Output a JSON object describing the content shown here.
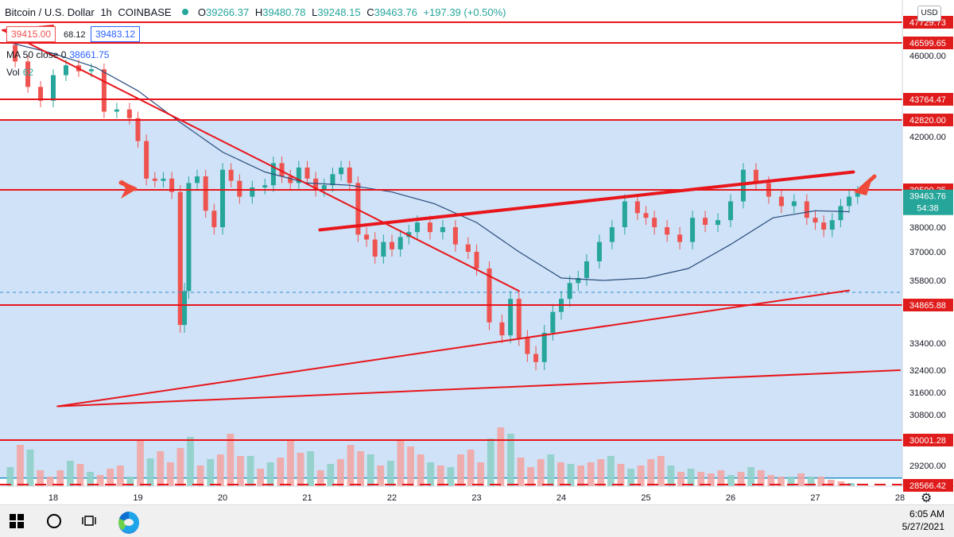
{
  "header": {
    "symbol": "Bitcoin / U.S. Dollar",
    "interval": "1h",
    "exchange": "COINBASE",
    "open_label": "O",
    "open": "39266.37",
    "high_label": "H",
    "high": "39480.78",
    "low_label": "L",
    "low": "39248.15",
    "close_label": "C",
    "close": "39463.76",
    "change": "+197.39 (+0.50%)",
    "bid": "39415.00",
    "spread": "68.12",
    "ask": "39483.12",
    "ma_label": "MA 50 close 0",
    "ma_value": "38661.75",
    "vol_label": "Vol",
    "vol_value": "62",
    "currency": "USD"
  },
  "colors": {
    "zone": "#cfe2f7",
    "up": "#26a69a",
    "down": "#ef5350",
    "trendline": "#e8151b",
    "ma": "#2b4c7e",
    "axis_tag": "#e01b1b"
  },
  "chart_data": {
    "type": "candlestick",
    "x_ticks": [
      "18",
      "19",
      "20",
      "21",
      "22",
      "23",
      "24",
      "25",
      "26",
      "27",
      "28"
    ],
    "y_ticks": [
      "46000.00",
      "42000.00",
      "38000.00",
      "37000.00",
      "35800.00",
      "33400.00",
      "32400.00",
      "31600.00",
      "30800.00",
      "29200.00"
    ],
    "level_labels": [
      "47729.73",
      "46599.65",
      "43764.47",
      "42820.00",
      "39590.25",
      "34865.88",
      "30001.28",
      "28566.42"
    ],
    "last_price": "39463.76",
    "countdown": "54:38",
    "zone_range": [
      28800,
      42820
    ],
    "horizontal_levels": [
      47729.73,
      46599.65,
      43764.47,
      42820.0,
      39590.25,
      34865.88,
      30001.28
    ],
    "dashed_level": 35800,
    "trendlines": [
      {
        "from": [
          "17.4",
          47300
        ],
        "to": [
          "23.5",
          35400
        ]
      },
      {
        "from": [
          "18.05",
          31100
        ],
        "to": [
          "27.4",
          35420
        ]
      },
      {
        "from": [
          "21.15",
          37890
        ],
        "to": [
          "27.45",
          40400
        ]
      },
      {
        "from": [
          "17.4",
          47300
        ],
        "to": [
          "18.0",
          47550
        ]
      },
      {
        "from": [
          "18.05",
          31100
        ],
        "to": [
          "28.0",
          32400
        ]
      }
    ],
    "series": [
      {
        "name": "close",
        "x": [
          17.55,
          17.7,
          17.85,
          18.0,
          18.15,
          18.3,
          18.45,
          18.6,
          18.75,
          18.9,
          19.0,
          19.1,
          19.2,
          19.3,
          19.4,
          19.5,
          19.55,
          19.6,
          19.7,
          19.8,
          19.9,
          20.0,
          20.1,
          20.2,
          20.35,
          20.5,
          20.6,
          20.7,
          20.8,
          20.9,
          21.0,
          21.1,
          21.2,
          21.3,
          21.4,
          21.5,
          21.6,
          21.7,
          21.8,
          21.9,
          22.0,
          22.1,
          22.2,
          22.3,
          22.45,
          22.6,
          22.75,
          22.9,
          23.0,
          23.15,
          23.3,
          23.4,
          23.5,
          23.6,
          23.7,
          23.8,
          23.9,
          24.0,
          24.1,
          24.2,
          24.3,
          24.45,
          24.6,
          24.75,
          24.9,
          25.0,
          25.1,
          25.25,
          25.4,
          25.55,
          25.7,
          25.85,
          26.0,
          26.15,
          26.3,
          26.45,
          26.6,
          26.75,
          26.9,
          27.0,
          27.1,
          27.2,
          27.3,
          27.4,
          27.5
        ],
        "values": [
          45700,
          44400,
          43700,
          45000,
          45500,
          45200,
          45300,
          43200,
          43300,
          42900,
          41800,
          40100,
          40000,
          40100,
          39500,
          34100,
          35400,
          39900,
          40200,
          38700,
          38000,
          40500,
          40000,
          39300,
          39700,
          39800,
          40800,
          40200,
          39900,
          40600,
          40100,
          39600,
          39800,
          40300,
          40600,
          39900,
          37700,
          37500,
          36800,
          37400,
          37100,
          37600,
          37800,
          38200,
          37800,
          38000,
          37300,
          37000,
          36300,
          34200,
          33700,
          35100,
          33600,
          33000,
          32700,
          33800,
          34600,
          35100,
          35700,
          35900,
          36600,
          37400,
          38000,
          39100,
          38600,
          38400,
          38000,
          37700,
          37400,
          38400,
          38100,
          38300,
          39100,
          40500,
          39900,
          39300,
          38900,
          39100,
          38400,
          38200,
          37900,
          38300,
          38900,
          39300,
          39460
        ]
      },
      {
        "name": "MA 50 close 0",
        "x": [
          17.5,
          18.0,
          18.5,
          19.0,
          19.5,
          20.0,
          20.5,
          21.0,
          21.5,
          22.0,
          22.5,
          23.0,
          23.5,
          24.0,
          24.5,
          25.0,
          25.5,
          26.0,
          26.5,
          27.0,
          27.4
        ],
        "values": [
          46600,
          46100,
          45400,
          44200,
          42700,
          41300,
          40400,
          39900,
          39800,
          39500,
          39000,
          38200,
          37000,
          35900,
          35800,
          35900,
          36300,
          37300,
          38400,
          38700,
          38660
        ]
      }
    ],
    "volume": [
      24,
      52,
      46,
      20,
      12,
      20,
      32,
      28,
      18,
      14,
      22,
      26,
      12,
      58,
      35,
      44,
      30,
      48,
      62,
      26,
      34,
      40,
      66,
      38,
      38,
      22,
      30,
      36,
      58,
      42,
      44,
      20,
      28,
      34,
      52,
      44,
      40,
      26,
      32,
      58,
      50,
      40,
      30,
      26,
      24,
      40,
      46,
      30,
      60,
      74,
      66,
      36,
      24,
      34,
      40,
      30,
      28,
      26,
      30,
      34,
      38,
      28,
      22,
      26,
      34,
      38,
      26,
      18,
      22,
      18,
      16,
      20,
      14,
      18,
      24,
      20,
      14,
      12,
      12,
      16,
      12,
      12,
      8,
      6,
      4
    ]
  },
  "taskbar": {
    "time": "6:05 AM",
    "date": "5/27/2021"
  }
}
